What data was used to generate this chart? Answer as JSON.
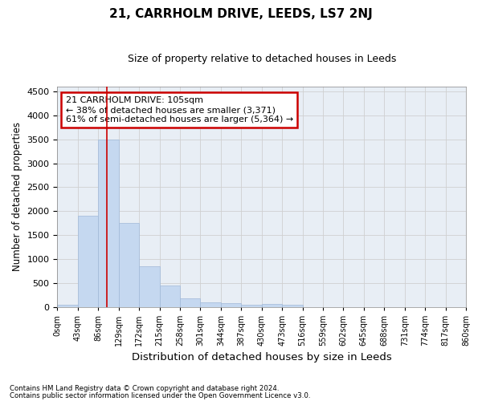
{
  "title": "21, CARRHOLM DRIVE, LEEDS, LS7 2NJ",
  "subtitle": "Size of property relative to detached houses in Leeds",
  "xlabel": "Distribution of detached houses by size in Leeds",
  "ylabel": "Number of detached properties",
  "annotation_title": "21 CARRHOLM DRIVE: 105sqm",
  "annotation_line1": "← 38% of detached houses are smaller (3,371)",
  "annotation_line2": "61% of semi-detached houses are larger (5,364) →",
  "property_size": 105,
  "footnote1": "Contains HM Land Registry data © Crown copyright and database right 2024.",
  "footnote2": "Contains public sector information licensed under the Open Government Licence v3.0.",
  "bar_color": "#c5d8f0",
  "bar_edge_color": "#a0b8d8",
  "grid_color": "#d0d0d0",
  "annotation_box_color": "#cc0000",
  "vline_color": "#cc0000",
  "bins": [
    0,
    43,
    86,
    129,
    172,
    215,
    258,
    301,
    344,
    387,
    430,
    473,
    516,
    559,
    602,
    645,
    688,
    731,
    774,
    817,
    860
  ],
  "counts": [
    50,
    1900,
    3500,
    1750,
    850,
    450,
    175,
    100,
    75,
    50,
    55,
    50,
    0,
    0,
    0,
    0,
    0,
    0,
    0,
    0
  ],
  "ylim": [
    0,
    4600
  ],
  "yticks": [
    0,
    500,
    1000,
    1500,
    2000,
    2500,
    3000,
    3500,
    4000,
    4500
  ],
  "background_color": "#e8eef5"
}
